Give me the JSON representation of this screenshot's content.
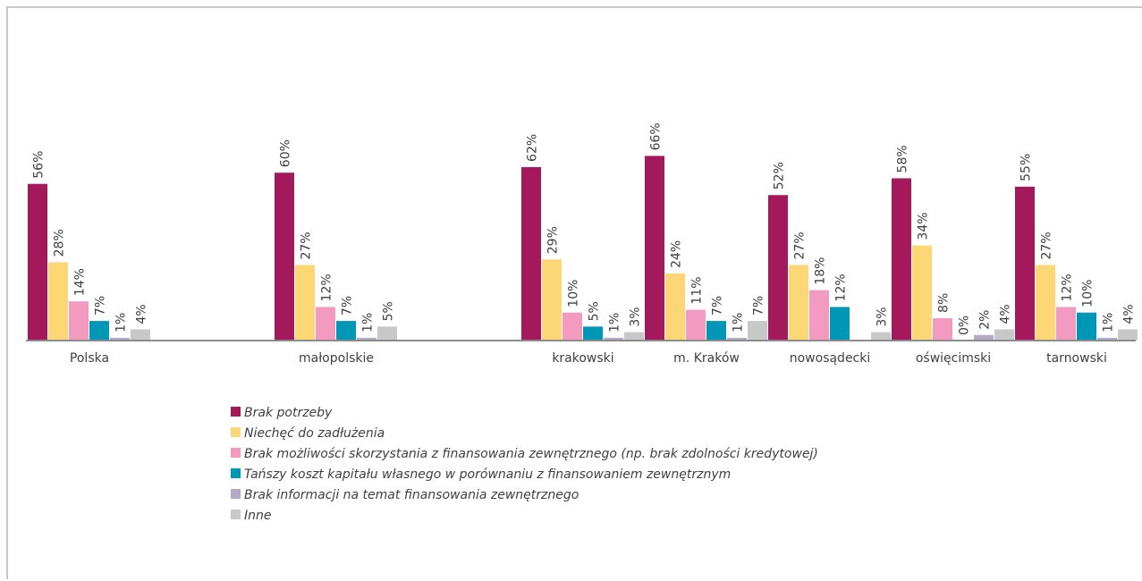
{
  "chart_data": {
    "type": "bar",
    "categories": [
      "Polska",
      null,
      "małopolskie",
      null,
      "krakowski",
      "m. Kraków",
      "nowosądecki",
      "oświęcimski",
      "tarnowski"
    ],
    "ylim": [
      0,
      100
    ],
    "series": [
      {
        "name": "Brak potrzeby",
        "color": "#a3195b",
        "values": [
          56,
          null,
          60,
          null,
          62,
          66,
          52,
          58,
          55
        ],
        "value_labels": [
          "56%",
          null,
          "60%",
          null,
          "62%",
          "66%",
          "52%",
          "58%",
          "55%"
        ]
      },
      {
        "name": "Niechęć do zadłużenia",
        "color": "#fdd775",
        "values": [
          28,
          null,
          27,
          null,
          29,
          24,
          27,
          34,
          27
        ],
        "value_labels": [
          "28%",
          null,
          "27%",
          null,
          "29%",
          "24%",
          "27%",
          "34%",
          "27%"
        ]
      },
      {
        "name": "Brak możliwości skorzystania z finansowania zewnętrznego (np. brak zdolności kredytowej)",
        "color": "#f39ac0",
        "values": [
          14,
          null,
          12,
          null,
          10,
          11,
          18,
          8,
          12
        ],
        "value_labels": [
          "14%",
          null,
          "12%",
          null,
          "10%",
          "11%",
          "18%",
          "8%",
          "12%"
        ]
      },
      {
        "name": "Tańszy koszt kapitału własnego w porównaniu z finansowaniem zewnętrznym",
        "color": "#0096b5",
        "values": [
          7,
          null,
          7,
          null,
          5,
          7,
          12,
          0,
          10
        ],
        "value_labels": [
          "7%",
          null,
          "7%",
          null,
          "5%",
          "7%",
          "12%",
          "0%",
          "10%"
        ]
      },
      {
        "name": "Brak informacji na temat finansowania zewnętrznego",
        "color": "#b3a9c9",
        "values": [
          1,
          null,
          1,
          null,
          1,
          1,
          null,
          2,
          1
        ],
        "value_labels": [
          "1%",
          null,
          "1%",
          null,
          "1%",
          "1%",
          null,
          "2%",
          "1%"
        ]
      },
      {
        "name": "Inne",
        "color": "#c8c8c8",
        "values": [
          4,
          null,
          5,
          null,
          3,
          7,
          3,
          4,
          4
        ],
        "value_labels": [
          "4%",
          null,
          "5%",
          null,
          "3%",
          "7%",
          "3%",
          "4%",
          "4%"
        ]
      }
    ]
  }
}
